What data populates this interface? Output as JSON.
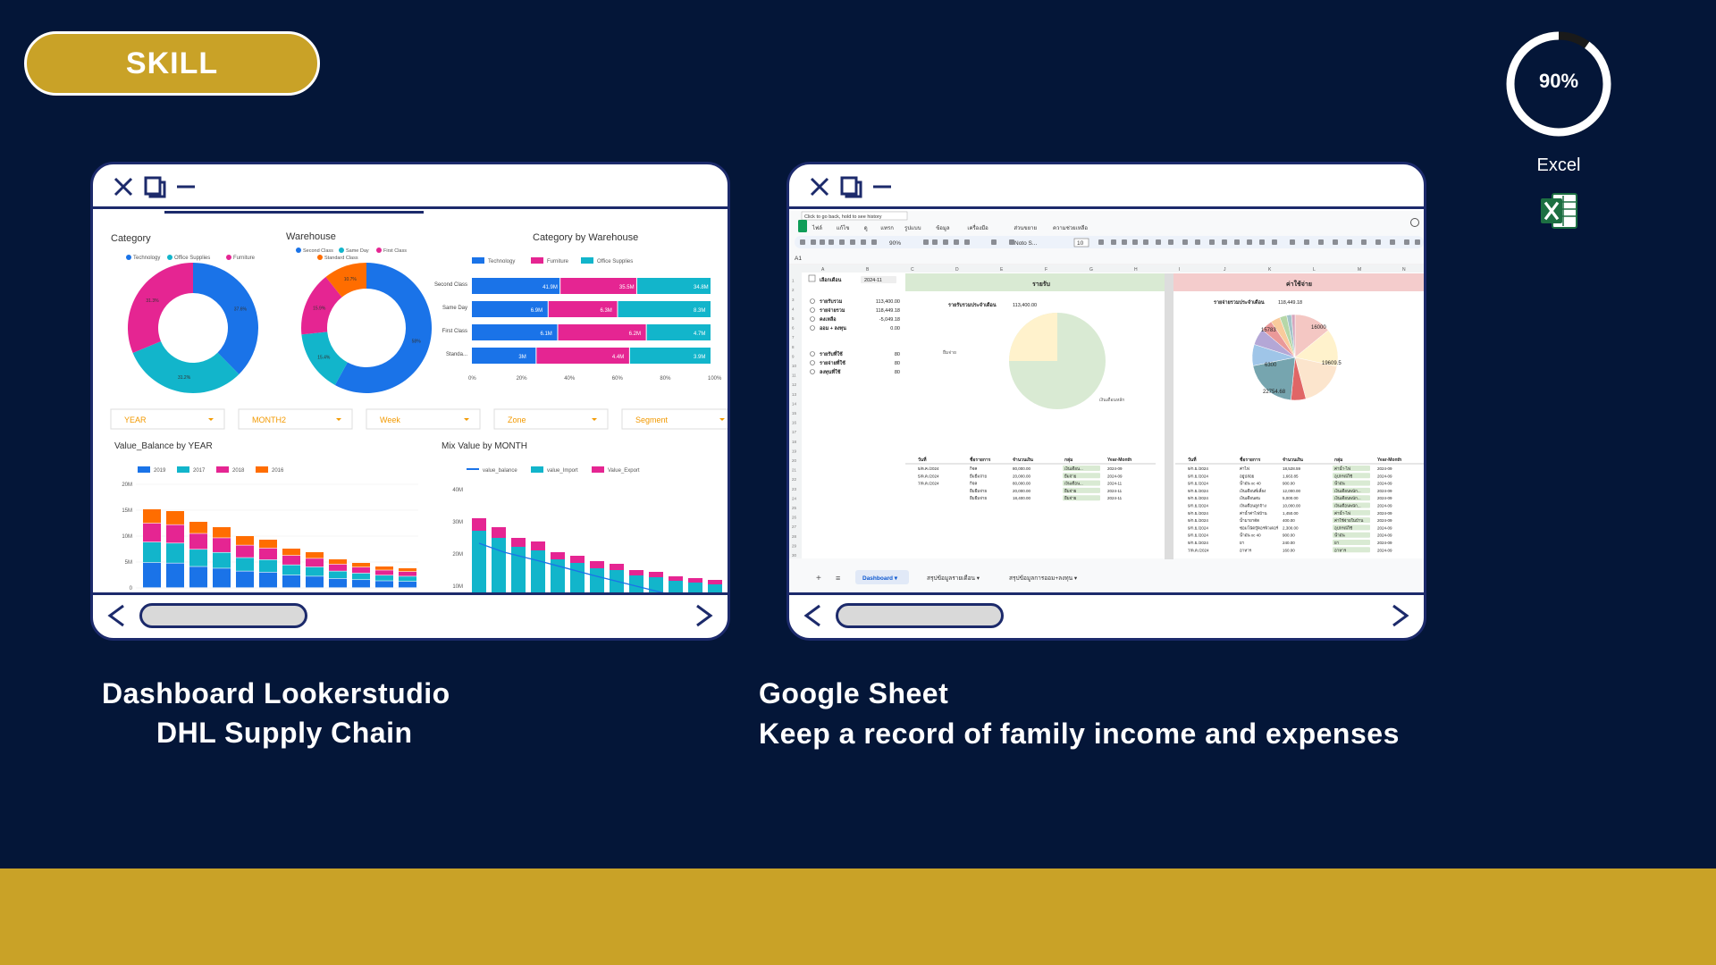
{
  "badge": {
    "label": "SKILL"
  },
  "skill": {
    "name": "Excel",
    "percent_label": "90%",
    "level": 0.9,
    "ring_color": "#ffffff",
    "track_color": "#1a1a1a"
  },
  "colors": {
    "background": "#041638",
    "gold": "#c9a227",
    "card_border": "#1c2a6b"
  },
  "projects": [
    {
      "title_line1": "Dashboard Lookerstudio",
      "title_line2": "DHL Supply Chain",
      "screenshot": {
        "category_title": "Category",
        "category_legend": [
          "Technology",
          "Office Supplies",
          "Furniture"
        ],
        "category_pcts": [
          "37.6%",
          "31.2%",
          "31.3%"
        ],
        "warehouse_title": "Warehouse",
        "warehouse_legend": [
          "Second Class",
          "Same Day",
          "First Class",
          "Standard Class"
        ],
        "warehouse_pcts": [
          "58%",
          "15.4%",
          "15.9%",
          "10.7%"
        ],
        "cat_wh_title": "Category by Warehouse",
        "cat_wh_legend": [
          "Technology",
          "Furniture",
          "Office Supplies"
        ],
        "cat_wh_rows": [
          {
            "label": "Second Class",
            "vals": [
              "41.9M",
              "35.5M",
              "34.8M"
            ]
          },
          {
            "label": "Same Day",
            "vals": [
              "6.9M",
              "6.3M",
              "8.3M"
            ]
          },
          {
            "label": "First Class",
            "vals": [
              "6.1M",
              "6.2M",
              "4.7M"
            ]
          },
          {
            "label": "Standa...",
            "vals": [
              "3M",
              "4.4M",
              "3.9M"
            ]
          }
        ],
        "cat_wh_axis": [
          "0%",
          "20%",
          "40%",
          "60%",
          "80%",
          "100%"
        ],
        "filters": [
          "YEAR",
          "MONTH2",
          "Week",
          "Zone",
          "Segment"
        ],
        "vb_title": "Value_Balance by YEAR",
        "vb_legend": [
          "2019",
          "2017",
          "2018",
          "2016"
        ],
        "vb_axis": [
          "20M",
          "15M",
          "10M",
          "5M",
          "0"
        ],
        "mix_title": "Mix Value by MONTH",
        "mix_legend": [
          "value_balance",
          "value_Import",
          "Value_Export"
        ],
        "mix_axis": [
          "40M",
          "30M",
          "20M",
          "10M"
        ]
      }
    },
    {
      "title_line1": "Google Sheet",
      "title_line2": "Keep a record of family income and expenses",
      "screenshot": {
        "tooltip": "Click to go back, hold to see history",
        "menu": [
          "ไฟล์",
          "แก้ไข",
          "ดู",
          "แทรก",
          "รูปแบบ",
          "ข้อมูล",
          "เครื่องมือ",
          "ส่วนขยาย",
          "ความช่วยเหลือ"
        ],
        "zoom": "90%",
        "font": "Noto S...",
        "font_size": "10",
        "cell_ref": "A1",
        "month_label": "เลือกเดือน",
        "month_value": "2024-11",
        "summary": [
          {
            "label": "รายรับรวม",
            "value": "113,400.00"
          },
          {
            "label": "รายจ่ายรวม",
            "value": "118,449.18"
          },
          {
            "label": "คงเหลือ",
            "value": "-5,049.18"
          },
          {
            "label": "ออม + ลงทุน",
            "value": "0.00"
          },
          {
            "label": "รายรับที่ใช้",
            "value": "80"
          },
          {
            "label": "รายจ่ายที่ใช้",
            "value": "80"
          },
          {
            "label": "ลงทุนที่ใช้",
            "value": "80"
          }
        ],
        "income_header": "รายรับ",
        "income_total_label": "รายรับรวมประจำเดือน",
        "income_total": "113,400.00",
        "expense_header": "ค่าใช้จ่าย",
        "expense_total_label": "รายจ่ายรวมประจำเดือน",
        "expense_total": "118,449.18",
        "pie_income_labels": [
          "ยืมจ่าย",
          "เงินเดือนหลัก"
        ],
        "pie_expense_values": [
          "15783",
          "16000",
          "19609.5",
          "6300",
          "22754.68"
        ],
        "table_headers": [
          "วันที่",
          "ชื่อรายการ",
          "จำนวนเงิน",
          "กลุ่ม",
          "Year-Month"
        ],
        "income_rows": [
          [
            "5/ต.ค./2024",
            "กิจค",
            "80,000.00",
            "เงินเดือน...",
            "2024-09"
          ],
          [
            "5/ต.ค./2024",
            "ยืมยืมจ่าย",
            "20,000.00",
            "ยืมจ่าย",
            "2024-09"
          ],
          [
            "7/ต.ค./2024",
            "กิจค",
            "80,000.00",
            "เงินเดือน...",
            "2024-11"
          ],
          [
            "",
            "ยืมยืมจ่าย",
            "20,000.00",
            "ยืมจ่าย",
            "2024-11"
          ],
          [
            "",
            "ยืมยืมจ่าย",
            "18,400.00",
            "ยืมจ่าย",
            "2024-11"
          ]
        ],
        "expense_rows": [
          [
            "9/ก.ย./2024",
            "ค่าไฟ",
            "18,528.59",
            "ค่าน้ำ-ไฟ",
            "2024-09"
          ],
          [
            "9/ก.ย./2024",
            "อยู่ปล่อย",
            "1,663.85",
            "อุปกรณ์ใช้",
            "2024-09"
          ],
          [
            "9/ก.ย./2024",
            "น้ำมัน xc 40",
            "900.00",
            "น้ำมัน",
            "2024-09"
          ],
          [
            "9/ก.ย./2024",
            "เงินเดือนพี่เลี้ยง",
            "12,000.00",
            "เงินเดือนพนัก...",
            "2024-09"
          ],
          [
            "9/ก.ย./2024",
            "เงินเดือนสน",
            "5,000.00",
            "เงินเดือนพนัก...",
            "2024-09"
          ],
          [
            "9/ก.ย./2024",
            "เงินเดือนลูกจ้าง",
            "10,000.00",
            "เงินเดือนพนัก...",
            "2024-09"
          ],
          [
            "9/ก.ย./2024",
            "ค่าน้ำค่าไฟบ้าน",
            "1,450.00",
            "ค่าน้ำ-ไฟ",
            "2024-09"
          ],
          [
            "9/ก.ย./2024",
            "น้ำมายาตัด",
            "400.00",
            "ค่าใช้จ่ายในบ้าน",
            "2024-09"
          ],
          [
            "9/ก.ย./2024",
            "ซ่อมโน้ตบุ๊คอรพิวเตอร์",
            "2,300.00",
            "อุปกรณ์ใช้",
            "2024-09"
          ],
          [
            "9/ก.ย./2024",
            "น้ำมัน xc 40",
            "900.00",
            "น้ำมัน",
            "2024-09"
          ],
          [
            "9/ก.ย./2024",
            "ยา",
            "240.00",
            "ยา",
            "2024-09"
          ],
          [
            "7/ต.ค./2024",
            "อาหาร",
            "160.00",
            "อาหาร",
            "2024-09"
          ]
        ],
        "sheet_tabs": [
          "Dashboard",
          "สรุปข้อมูลรายเดือน",
          "สรุปข้อมูลการออม+ลงทุน"
        ]
      }
    }
  ],
  "chart_data": [
    {
      "type": "pie",
      "title": "Category",
      "categories": [
        "Technology",
        "Office Supplies",
        "Furniture"
      ],
      "values": [
        37.6,
        31.2,
        31.3
      ]
    },
    {
      "type": "pie",
      "title": "Warehouse",
      "categories": [
        "Second Class",
        "Same Day",
        "First Class",
        "Standard Class"
      ],
      "values": [
        58,
        15.4,
        15.9,
        10.7
      ]
    }
  ]
}
